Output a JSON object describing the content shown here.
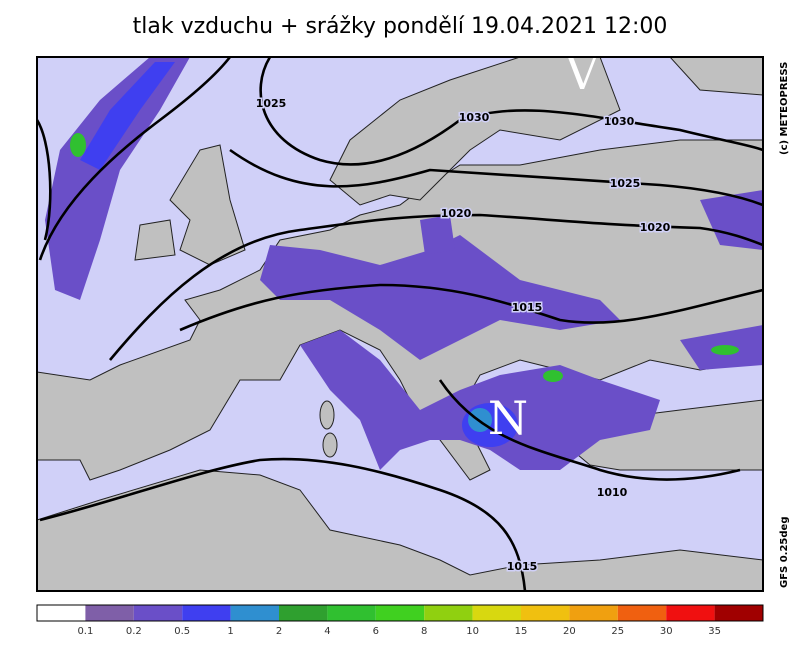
{
  "title": "tlak vzduchu + srážky pondělí 19.04.2021 12:00",
  "map": {
    "isobar_labels": [
      "1025",
      "1030",
      "1030",
      "1025",
      "1020",
      "1020",
      "1015",
      "1010",
      "1015"
    ],
    "centers": [
      "V",
      "N"
    ]
  },
  "credits": [
    "(c) METEOPRESS",
    "GFS 0.25deg"
  ],
  "legend": {
    "colors": [
      "#ffffff",
      "#7f5fa8",
      "#6a4fc8",
      "#3f3ff0",
      "#2f8fd0",
      "#2fa02f",
      "#30c030",
      "#40d020",
      "#90d010",
      "#d8d810",
      "#f0c010",
      "#f0a010",
      "#f06010",
      "#f01010",
      "#a00000"
    ],
    "labels": [
      0.1,
      0.2,
      0.5,
      1,
      2,
      4,
      6,
      8,
      10,
      15,
      20,
      25,
      30,
      35
    ]
  }
}
